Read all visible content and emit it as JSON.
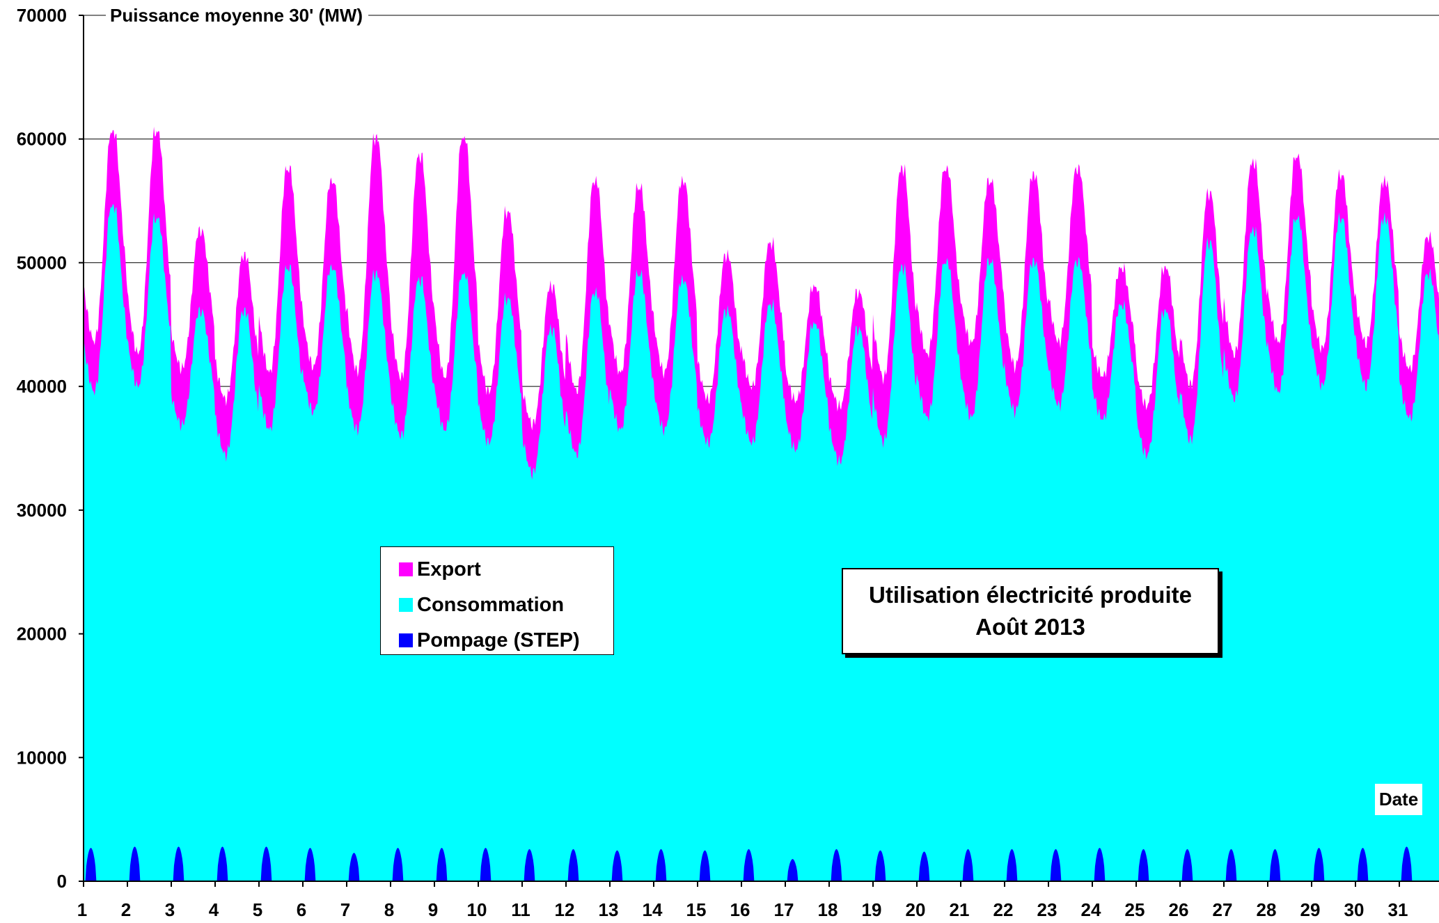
{
  "chart_data": {
    "type": "area",
    "title_line1": "Utilisation électricité produite",
    "title_line2": "Août 2013",
    "ylabel": "Puissance moyenne 30' (MW)",
    "xlabel": "Date",
    "ylim": [
      0,
      70000
    ],
    "yticks": [
      "0",
      "10000",
      "20000",
      "30000",
      "40000",
      "50000",
      "60000",
      "70000"
    ],
    "xticks": [
      "1",
      "2",
      "3",
      "4",
      "5",
      "6",
      "7",
      "8",
      "9",
      "10",
      "11",
      "12",
      "13",
      "14",
      "15",
      "16",
      "17",
      "18",
      "19",
      "20",
      "21",
      "22",
      "23",
      "24",
      "25",
      "26",
      "27",
      "28",
      "29",
      "30",
      "31"
    ],
    "grid": "horizontal",
    "legend_position": "center-left",
    "days": [
      1,
      2,
      3,
      4,
      5,
      6,
      7,
      8,
      9,
      10,
      11,
      12,
      13,
      14,
      15,
      16,
      17,
      18,
      19,
      20,
      21,
      22,
      23,
      24,
      25,
      26,
      27,
      28,
      29,
      30,
      31
    ],
    "series": [
      {
        "name": "Export",
        "color": "#ff00ff",
        "daily_min": [
          43000,
          42000,
          41000,
          38500,
          40500,
          41000,
          40500,
          40000,
          40000,
          39000,
          36500,
          39000,
          40500,
          40500,
          38500,
          39500,
          38500,
          38000,
          40000,
          42000,
          43000,
          41000,
          43000,
          40500,
          38000,
          39500,
          42000,
          43000,
          42500,
          43000,
          41000
        ],
        "daily_max": [
          60500,
          60500,
          52500,
          50500,
          57500,
          56500,
          60000,
          58500,
          60000,
          54000,
          48000,
          56500,
          56000,
          56500,
          50500,
          51500,
          48000,
          47500,
          57500,
          57500,
          56500,
          57000,
          57500,
          49500,
          49500,
          55500,
          58000,
          58500,
          57000,
          56500,
          52000
        ]
      },
      {
        "name": "Consommation",
        "color": "#00ffff",
        "daily_min": [
          39000,
          39500,
          36500,
          34000,
          36000,
          37500,
          36000,
          35500,
          36000,
          35000,
          32500,
          34000,
          36000,
          36000,
          35000,
          35000,
          34500,
          33500,
          35000,
          37000,
          37000,
          37500,
          38000,
          37000,
          34000,
          35000,
          38500,
          39000,
          39500,
          39500,
          37000
        ],
        "daily_max": [
          54500,
          53500,
          46000,
          46000,
          49500,
          49500,
          49000,
          48500,
          49000,
          47000,
          44500,
          47500,
          49000,
          48500,
          46000,
          46500,
          45000,
          44500,
          49500,
          50000,
          50000,
          50000,
          50000,
          46500,
          46000,
          51500,
          52500,
          53500,
          53500,
          53500,
          49000
        ]
      },
      {
        "name": "Pompage (STEP)",
        "color": "#0000ff",
        "daily_min": [
          0,
          0,
          0,
          0,
          0,
          0,
          0,
          0,
          0,
          0,
          0,
          0,
          0,
          0,
          0,
          0,
          0,
          0,
          0,
          0,
          0,
          0,
          0,
          0,
          0,
          0,
          0,
          0,
          0,
          0,
          0
        ],
        "daily_max": [
          2700,
          2800,
          2800,
          2800,
          2800,
          2700,
          2300,
          2700,
          2700,
          2700,
          2600,
          2600,
          2500,
          2600,
          2500,
          2600,
          1800,
          2600,
          2500,
          2400,
          2600,
          2600,
          2600,
          2700,
          2600,
          2600,
          2600,
          2600,
          2700,
          2700,
          2800
        ]
      }
    ]
  }
}
